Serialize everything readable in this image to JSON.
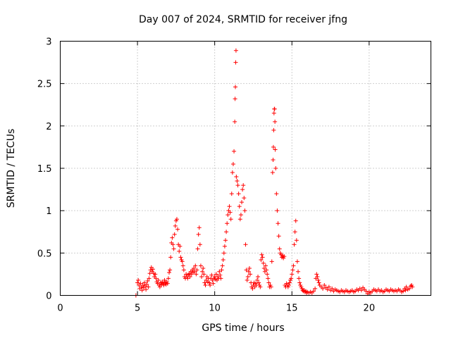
{
  "chart_data": {
    "type": "scatter",
    "title": "Day 007 of 2024, SRMTID for receiver jfng",
    "xlabel": "GPS time / hours",
    "ylabel": "SRMTID / TECUs",
    "xlim": [
      0,
      24
    ],
    "ylim": [
      0,
      3
    ],
    "x_ticks": [
      0,
      5,
      10,
      15,
      20
    ],
    "y_ticks": [
      0,
      0.5,
      1,
      1.5,
      2,
      2.5,
      3
    ],
    "x_tick_labels": [
      "0",
      "5",
      "10",
      "15",
      "20"
    ],
    "y_tick_labels": [
      "0",
      "0.5",
      "1",
      "1.5",
      "2",
      "2.5",
      "3"
    ],
    "grid": true,
    "marker": "+",
    "marker_color": "#ff0000",
    "series": [
      {
        "name": "SRMTID",
        "points": [
          [
            4.9,
            0.0
          ],
          [
            5.0,
            0.15
          ],
          [
            5.05,
            0.18
          ],
          [
            5.1,
            0.12
          ],
          [
            5.15,
            0.08
          ],
          [
            5.2,
            0.14
          ],
          [
            5.25,
            0.1
          ],
          [
            5.3,
            0.06
          ],
          [
            5.35,
            0.12
          ],
          [
            5.4,
            0.09
          ],
          [
            5.45,
            0.15
          ],
          [
            5.5,
            0.11
          ],
          [
            5.55,
            0.07
          ],
          [
            5.6,
            0.13
          ],
          [
            5.65,
            0.17
          ],
          [
            5.7,
            0.1
          ],
          [
            5.75,
            0.2
          ],
          [
            5.8,
            0.26
          ],
          [
            5.85,
            0.3
          ],
          [
            5.9,
            0.33
          ],
          [
            5.95,
            0.28
          ],
          [
            6.0,
            0.31
          ],
          [
            6.05,
            0.26
          ],
          [
            6.1,
            0.22
          ],
          [
            6.15,
            0.25
          ],
          [
            6.2,
            0.2
          ],
          [
            6.25,
            0.16
          ],
          [
            6.3,
            0.14
          ],
          [
            6.35,
            0.18
          ],
          [
            6.4,
            0.12
          ],
          [
            6.45,
            0.1
          ],
          [
            6.5,
            0.15
          ],
          [
            6.55,
            0.13
          ],
          [
            6.6,
            0.16
          ],
          [
            6.65,
            0.14
          ],
          [
            6.7,
            0.12
          ],
          [
            6.75,
            0.18
          ],
          [
            6.8,
            0.15
          ],
          [
            6.85,
            0.13
          ],
          [
            6.9,
            0.16
          ],
          [
            6.95,
            0.14
          ],
          [
            7.0,
            0.2
          ],
          [
            7.05,
            0.27
          ],
          [
            7.1,
            0.3
          ],
          [
            7.15,
            0.45
          ],
          [
            7.2,
            0.62
          ],
          [
            7.25,
            0.68
          ],
          [
            7.3,
            0.6
          ],
          [
            7.35,
            0.55
          ],
          [
            7.4,
            0.72
          ],
          [
            7.45,
            0.82
          ],
          [
            7.5,
            0.88
          ],
          [
            7.55,
            0.9
          ],
          [
            7.6,
            0.78
          ],
          [
            7.65,
            0.6
          ],
          [
            7.7,
            0.52
          ],
          [
            7.75,
            0.58
          ],
          [
            7.8,
            0.45
          ],
          [
            7.85,
            0.42
          ],
          [
            7.9,
            0.4
          ],
          [
            7.95,
            0.35
          ],
          [
            8.0,
            0.3
          ],
          [
            8.05,
            0.22
          ],
          [
            8.1,
            0.2
          ],
          [
            8.15,
            0.25
          ],
          [
            8.2,
            0.22
          ],
          [
            8.25,
            0.2
          ],
          [
            8.3,
            0.24
          ],
          [
            8.35,
            0.26
          ],
          [
            8.4,
            0.22
          ],
          [
            8.45,
            0.28
          ],
          [
            8.5,
            0.25
          ],
          [
            8.55,
            0.3
          ],
          [
            8.6,
            0.27
          ],
          [
            8.65,
            0.32
          ],
          [
            8.7,
            0.28
          ],
          [
            8.75,
            0.35
          ],
          [
            8.8,
            0.25
          ],
          [
            8.85,
            0.3
          ],
          [
            8.9,
            0.55
          ],
          [
            8.95,
            0.72
          ],
          [
            9.0,
            0.8
          ],
          [
            9.05,
            0.6
          ],
          [
            9.1,
            0.35
          ],
          [
            9.15,
            0.22
          ],
          [
            9.2,
            0.28
          ],
          [
            9.25,
            0.32
          ],
          [
            9.3,
            0.25
          ],
          [
            9.35,
            0.15
          ],
          [
            9.4,
            0.12
          ],
          [
            9.45,
            0.18
          ],
          [
            9.5,
            0.22
          ],
          [
            9.55,
            0.16
          ],
          [
            9.6,
            0.2
          ],
          [
            9.65,
            0.15
          ],
          [
            9.7,
            0.12
          ],
          [
            9.75,
            0.2
          ],
          [
            9.8,
            0.24
          ],
          [
            9.85,
            0.18
          ],
          [
            9.9,
            0.14
          ],
          [
            9.95,
            0.2
          ],
          [
            10.0,
            0.22
          ],
          [
            10.05,
            0.19
          ],
          [
            10.1,
            0.25
          ],
          [
            10.15,
            0.18
          ],
          [
            10.2,
            0.22
          ],
          [
            10.25,
            0.2
          ],
          [
            10.3,
            0.28
          ],
          [
            10.35,
            0.24
          ],
          [
            10.4,
            0.2
          ],
          [
            10.45,
            0.3
          ],
          [
            10.5,
            0.35
          ],
          [
            10.55,
            0.42
          ],
          [
            10.6,
            0.5
          ],
          [
            10.65,
            0.58
          ],
          [
            10.7,
            0.65
          ],
          [
            10.75,
            0.75
          ],
          [
            10.8,
            0.85
          ],
          [
            10.85,
            0.95
          ],
          [
            10.9,
            1.0
          ],
          [
            10.95,
            1.05
          ],
          [
            11.0,
            0.98
          ],
          [
            11.05,
            0.9
          ],
          [
            11.1,
            1.2
          ],
          [
            11.15,
            1.45
          ],
          [
            11.2,
            1.55
          ],
          [
            11.25,
            1.7
          ],
          [
            11.3,
            2.05
          ],
          [
            11.32,
            2.32
          ],
          [
            11.34,
            2.46
          ],
          [
            11.36,
            2.75
          ],
          [
            11.38,
            2.89
          ],
          [
            11.4,
            1.4
          ],
          [
            11.45,
            1.35
          ],
          [
            11.5,
            1.3
          ],
          [
            11.55,
            1.2
          ],
          [
            11.6,
            1.05
          ],
          [
            11.65,
            0.9
          ],
          [
            11.7,
            0.95
          ],
          [
            11.75,
            1.1
          ],
          [
            11.8,
            1.25
          ],
          [
            11.85,
            1.3
          ],
          [
            11.9,
            1.15
          ],
          [
            11.95,
            1.0
          ],
          [
            12.0,
            0.6
          ],
          [
            12.05,
            0.3
          ],
          [
            12.1,
            0.18
          ],
          [
            12.15,
            0.22
          ],
          [
            12.2,
            0.28
          ],
          [
            12.25,
            0.32
          ],
          [
            12.3,
            0.25
          ],
          [
            12.35,
            0.15
          ],
          [
            12.4,
            0.1
          ],
          [
            12.45,
            0.08
          ],
          [
            12.5,
            0.12
          ],
          [
            12.55,
            0.15
          ],
          [
            12.6,
            0.1
          ],
          [
            12.65,
            0.14
          ],
          [
            12.7,
            0.12
          ],
          [
            12.75,
            0.18
          ],
          [
            12.8,
            0.22
          ],
          [
            12.85,
            0.15
          ],
          [
            12.9,
            0.12
          ],
          [
            12.95,
            0.1
          ],
          [
            13.0,
            0.42
          ],
          [
            13.05,
            0.48
          ],
          [
            13.1,
            0.45
          ],
          [
            13.15,
            0.38
          ],
          [
            13.2,
            0.32
          ],
          [
            13.25,
            0.28
          ],
          [
            13.3,
            0.35
          ],
          [
            13.35,
            0.3
          ],
          [
            13.4,
            0.25
          ],
          [
            13.45,
            0.2
          ],
          [
            13.5,
            0.15
          ],
          [
            13.55,
            0.1
          ],
          [
            13.6,
            0.12
          ],
          [
            13.65,
            0.1
          ],
          [
            13.7,
            0.4
          ],
          [
            13.75,
            1.45
          ],
          [
            13.78,
            1.6
          ],
          [
            13.8,
            1.75
          ],
          [
            13.82,
            1.95
          ],
          [
            13.84,
            2.15
          ],
          [
            13.86,
            2.2
          ],
          [
            13.88,
            2.2
          ],
          [
            13.9,
            2.05
          ],
          [
            13.92,
            1.72
          ],
          [
            13.95,
            1.5
          ],
          [
            14.0,
            1.2
          ],
          [
            14.05,
            1.0
          ],
          [
            14.1,
            0.85
          ],
          [
            14.15,
            0.7
          ],
          [
            14.2,
            0.55
          ],
          [
            14.25,
            0.5
          ],
          [
            14.3,
            0.48
          ],
          [
            14.35,
            0.45
          ],
          [
            14.4,
            0.47
          ],
          [
            14.45,
            0.44
          ],
          [
            14.5,
            0.46
          ],
          [
            14.55,
            0.12
          ],
          [
            14.6,
            0.1
          ],
          [
            14.65,
            0.14
          ],
          [
            14.7,
            0.12
          ],
          [
            14.75,
            0.1
          ],
          [
            14.8,
            0.12
          ],
          [
            14.85,
            0.15
          ],
          [
            14.9,
            0.18
          ],
          [
            14.95,
            0.2
          ],
          [
            15.0,
            0.25
          ],
          [
            15.05,
            0.3
          ],
          [
            15.1,
            0.35
          ],
          [
            15.15,
            0.6
          ],
          [
            15.2,
            0.75
          ],
          [
            15.25,
            0.88
          ],
          [
            15.3,
            0.65
          ],
          [
            15.35,
            0.4
          ],
          [
            15.4,
            0.28
          ],
          [
            15.45,
            0.2
          ],
          [
            15.5,
            0.15
          ],
          [
            15.55,
            0.12
          ],
          [
            15.6,
            0.1
          ],
          [
            15.65,
            0.08
          ],
          [
            15.7,
            0.06
          ],
          [
            15.75,
            0.05
          ],
          [
            15.8,
            0.06
          ],
          [
            15.85,
            0.04
          ],
          [
            15.9,
            0.05
          ],
          [
            15.95,
            0.03
          ],
          [
            16.0,
            0.04
          ],
          [
            16.1,
            0.03
          ],
          [
            16.2,
            0.04
          ],
          [
            16.3,
            0.03
          ],
          [
            16.4,
            0.05
          ],
          [
            16.5,
            0.08
          ],
          [
            16.55,
            0.2
          ],
          [
            16.6,
            0.25
          ],
          [
            16.65,
            0.22
          ],
          [
            16.7,
            0.18
          ],
          [
            16.75,
            0.15
          ],
          [
            16.8,
            0.12
          ],
          [
            16.9,
            0.1
          ],
          [
            17.0,
            0.08
          ],
          [
            17.1,
            0.12
          ],
          [
            17.2,
            0.09
          ],
          [
            17.3,
            0.07
          ],
          [
            17.4,
            0.1
          ],
          [
            17.5,
            0.06
          ],
          [
            17.6,
            0.08
          ],
          [
            17.7,
            0.05
          ],
          [
            17.8,
            0.07
          ],
          [
            17.9,
            0.06
          ],
          [
            18.0,
            0.05
          ],
          [
            18.1,
            0.04
          ],
          [
            18.2,
            0.06
          ],
          [
            18.3,
            0.05
          ],
          [
            18.4,
            0.04
          ],
          [
            18.5,
            0.06
          ],
          [
            18.6,
            0.05
          ],
          [
            18.7,
            0.04
          ],
          [
            18.8,
            0.05
          ],
          [
            18.9,
            0.06
          ],
          [
            19.0,
            0.04
          ],
          [
            19.1,
            0.05
          ],
          [
            19.2,
            0.07
          ],
          [
            19.3,
            0.06
          ],
          [
            19.4,
            0.08
          ],
          [
            19.5,
            0.06
          ],
          [
            19.6,
            0.09
          ],
          [
            19.7,
            0.07
          ],
          [
            19.8,
            0.05
          ],
          [
            19.9,
            0.02
          ],
          [
            20.0,
            0.04
          ],
          [
            20.1,
            0.03
          ],
          [
            20.2,
            0.05
          ],
          [
            20.3,
            0.07
          ],
          [
            20.4,
            0.06
          ],
          [
            20.5,
            0.05
          ],
          [
            20.6,
            0.07
          ],
          [
            20.7,
            0.05
          ],
          [
            20.8,
            0.06
          ],
          [
            20.9,
            0.04
          ],
          [
            21.0,
            0.05
          ],
          [
            21.1,
            0.07
          ],
          [
            21.2,
            0.06
          ],
          [
            21.3,
            0.05
          ],
          [
            21.4,
            0.07
          ],
          [
            21.5,
            0.06
          ],
          [
            21.6,
            0.05
          ],
          [
            21.7,
            0.06
          ],
          [
            21.8,
            0.05
          ],
          [
            21.9,
            0.07
          ],
          [
            22.0,
            0.06
          ],
          [
            22.1,
            0.04
          ],
          [
            22.2,
            0.05
          ],
          [
            22.3,
            0.08
          ],
          [
            22.35,
            0.06
          ],
          [
            22.4,
            0.1
          ],
          [
            22.5,
            0.07
          ],
          [
            22.6,
            0.08
          ],
          [
            22.7,
            0.11
          ],
          [
            22.75,
            0.12
          ],
          [
            22.8,
            0.1
          ]
        ]
      }
    ]
  }
}
